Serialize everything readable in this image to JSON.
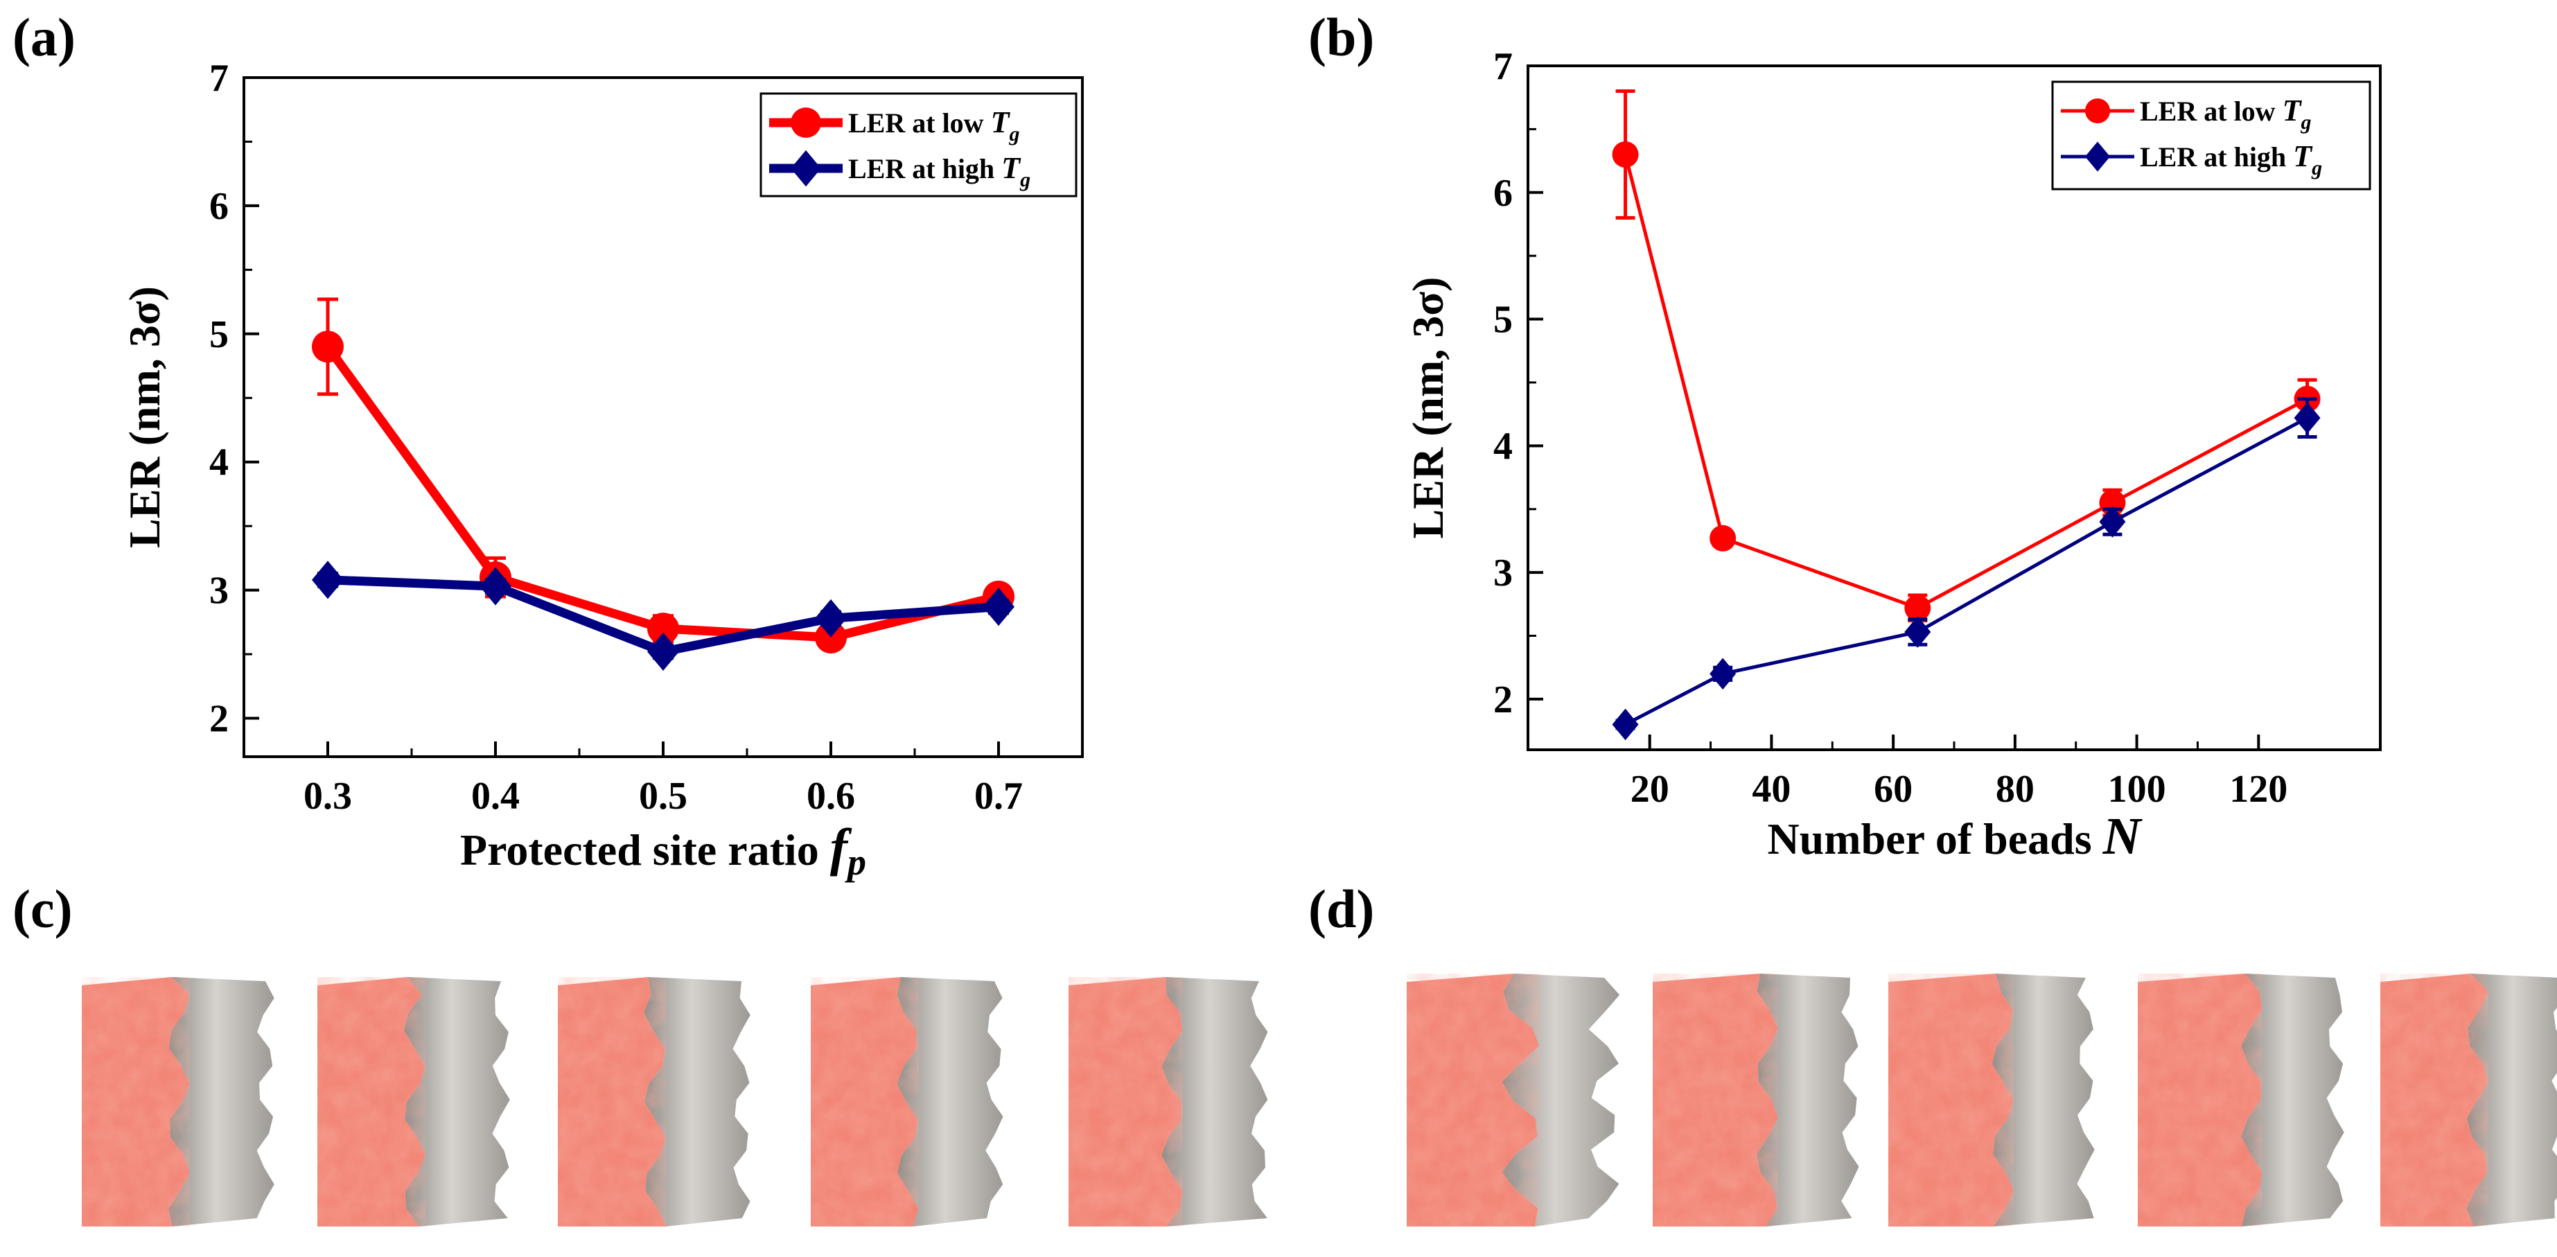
{
  "panel_labels": {
    "a": "(a)",
    "b": "(b)",
    "c": "(c)",
    "d": "(d)"
  },
  "colors": {
    "low": "#ff0000",
    "high": "#000080",
    "axis": "#000000",
    "surface_red": "#ef6b58",
    "surface_gray": "#b9b5af"
  },
  "surfaces": {
    "c_count": 5,
    "d_count": 5
  },
  "chart_data": [
    {
      "type": "line",
      "panel": "(a)",
      "title": "",
      "xlabel": "Protected site ratio",
      "xlabel_symbol": "f",
      "xlabel_subscript": "p",
      "ylabel": "LER (nm, 3σ)",
      "xlim": [
        0.25,
        0.75
      ],
      "ylim": [
        1.7,
        7.0
      ],
      "xticks": [
        0.3,
        0.4,
        0.5,
        0.6,
        0.7
      ],
      "xtick_labels": [
        "0.3",
        "0.4",
        "0.5",
        "0.6",
        "0.7"
      ],
      "yticks": [
        2,
        3,
        4,
        5,
        6,
        7
      ],
      "ytick_labels": [
        "2",
        "3",
        "4",
        "5",
        "6",
        "7"
      ],
      "legend_position": "top-right",
      "series": [
        {
          "name": "LER at low",
          "symbol": "T",
          "subscript": "g",
          "color": "#ff0000",
          "marker": "circle",
          "x": [
            0.3,
            0.4,
            0.5,
            0.6,
            0.7
          ],
          "y": [
            4.9,
            3.1,
            2.7,
            2.63,
            2.95
          ],
          "err": [
            0.37,
            0.15,
            0.1,
            0.05,
            0.05
          ]
        },
        {
          "name": "LER at high",
          "symbol": "T",
          "subscript": "g",
          "color": "#000080",
          "marker": "diamond",
          "x": [
            0.3,
            0.4,
            0.5,
            0.6,
            0.7
          ],
          "y": [
            3.08,
            3.03,
            2.52,
            2.78,
            2.87
          ],
          "err": [
            0.05,
            0.05,
            0.05,
            0.05,
            0.05
          ]
        }
      ]
    },
    {
      "type": "line",
      "panel": "(b)",
      "title": "",
      "xlabel": "Number of beads",
      "xlabel_symbol": "N",
      "xlabel_subscript": "",
      "ylabel": "LER (nm, 3σ)",
      "xlim": [
        0,
        140
      ],
      "ylim": [
        1.6,
        7.0
      ],
      "xticks": [
        20,
        40,
        60,
        80,
        100,
        120
      ],
      "xtick_labels": [
        "20",
        "40",
        "60",
        "80",
        "100",
        "120"
      ],
      "yticks": [
        2,
        3,
        4,
        5,
        6,
        7
      ],
      "ytick_labels": [
        "2",
        "3",
        "4",
        "5",
        "6",
        "7"
      ],
      "legend_position": "top-right",
      "series": [
        {
          "name": "LER at low",
          "symbol": "T",
          "subscript": "g",
          "color": "#ff0000",
          "marker": "circle",
          "x": [
            16,
            32,
            64,
            96,
            128
          ],
          "y": [
            6.3,
            3.27,
            2.72,
            3.55,
            4.37
          ],
          "err": [
            0.5,
            0.05,
            0.1,
            0.1,
            0.15
          ]
        },
        {
          "name": "LER at high",
          "symbol": "T",
          "subscript": "g",
          "color": "#000080",
          "marker": "diamond",
          "x": [
            16,
            32,
            64,
            96,
            128
          ],
          "y": [
            1.8,
            2.2,
            2.53,
            3.4,
            4.22
          ],
          "err": [
            0.03,
            0.05,
            0.1,
            0.1,
            0.15
          ]
        }
      ]
    }
  ]
}
